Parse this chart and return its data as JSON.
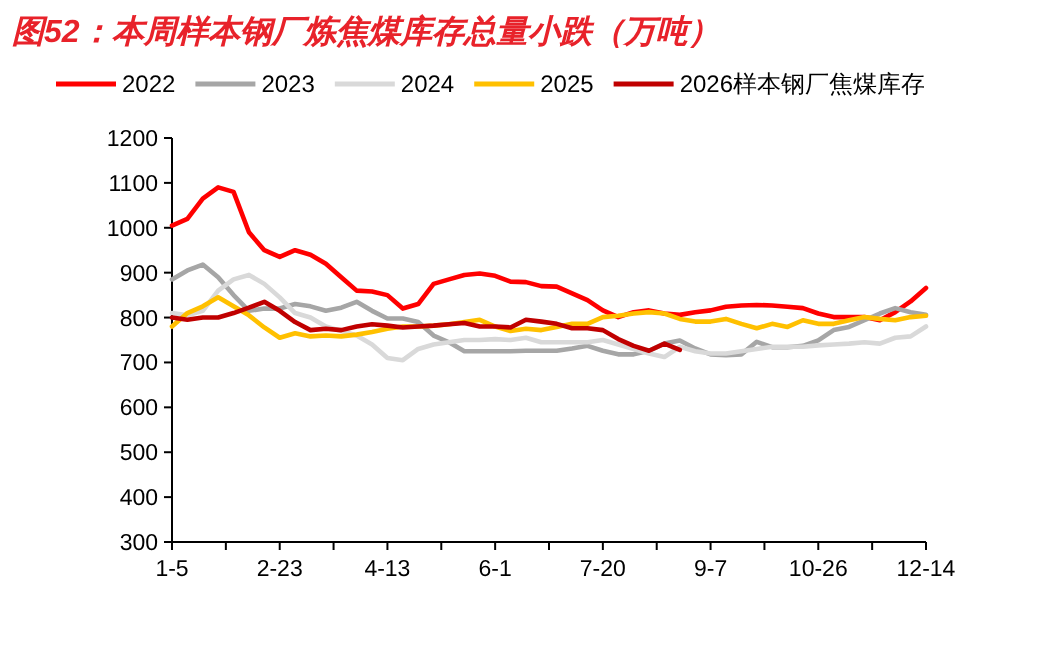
{
  "chart_data": {
    "type": "line",
    "title": "图52：本周样本钢厂炼焦煤库存总量小跌（万吨）",
    "categories": [
      "1-5",
      null,
      null,
      null,
      null,
      null,
      null,
      "2-23",
      null,
      null,
      null,
      null,
      null,
      null,
      "4-13",
      null,
      null,
      null,
      null,
      null,
      null,
      "6-1",
      null,
      null,
      null,
      null,
      null,
      null,
      "7-20",
      null,
      null,
      null,
      null,
      null,
      null,
      "9-7",
      null,
      null,
      null,
      null,
      null,
      null,
      "10-26",
      null,
      null,
      null,
      null,
      null,
      null,
      "12-14"
    ],
    "series": [
      {
        "name": "2022",
        "color": "#ff0000",
        "values": [
          1005,
          1020,
          1065,
          1090,
          1080,
          990,
          950,
          935,
          950,
          940,
          920,
          890,
          860,
          858,
          850,
          820,
          830,
          875,
          885,
          895,
          898,
          893,
          880,
          879,
          870,
          869,
          854,
          839,
          816,
          801,
          812,
          816,
          809,
          806,
          812,
          816,
          824,
          827,
          828,
          827,
          824,
          821,
          809,
          801,
          801,
          801,
          794,
          812,
          836,
          866
        ]
      },
      {
        "name": "2023",
        "color": "#a6a6a6",
        "values": [
          885,
          905,
          918,
          890,
          850,
          815,
          820,
          820,
          830,
          825,
          815,
          822,
          835,
          815,
          798,
          798,
          790,
          760,
          745,
          725,
          725,
          725,
          725,
          726,
          726,
          726,
          731,
          737,
          726,
          718,
          718,
          726,
          742,
          749,
          731,
          718,
          716,
          718,
          746,
          734,
          734,
          737,
          749,
          772,
          779,
          794,
          809,
          821,
          812,
          806
        ]
      },
      {
        "name": "2024",
        "color": "#d9d9d9",
        "values": [
          810,
          805,
          815,
          860,
          885,
          895,
          875,
          845,
          810,
          800,
          780,
          770,
          760,
          740,
          710,
          705,
          730,
          740,
          745,
          750,
          750,
          752,
          750,
          755,
          745,
          745,
          745,
          745,
          750,
          740,
          730,
          720,
          712,
          735,
          725,
          720,
          720,
          725,
          730,
          735,
          735,
          735,
          738,
          740,
          742,
          745,
          742,
          755,
          758,
          780
        ]
      },
      {
        "name": "2025",
        "color": "#ffc000",
        "values": [
          780,
          810,
          825,
          845,
          825,
          805,
          778,
          755,
          765,
          758,
          760,
          758,
          762,
          768,
          775,
          780,
          780,
          782,
          785,
          790,
          795,
          780,
          770,
          775,
          772,
          779,
          786,
          786,
          801,
          804,
          809,
          812,
          809,
          797,
          791,
          791,
          797,
          786,
          776,
          786,
          779,
          794,
          786,
          786,
          794,
          801,
          797,
          794,
          801,
          804
        ]
      },
      {
        "name": "2026样本钢厂焦煤库存",
        "color": "#c00000",
        "values": [
          800,
          795,
          800,
          800,
          810,
          822,
          835,
          815,
          790,
          772,
          775,
          772,
          780,
          785,
          782,
          778,
          780,
          782,
          785,
          788,
          780,
          780,
          778,
          795,
          791,
          786,
          776,
          776,
          772,
          752,
          737,
          726,
          742,
          728,
          null,
          null,
          null,
          null,
          null,
          null,
          null,
          null,
          null,
          null,
          null,
          null,
          null,
          null,
          null,
          null
        ]
      }
    ],
    "ylim": [
      300,
      1200
    ],
    "yticks": [
      300,
      400,
      500,
      600,
      700,
      800,
      900,
      1000,
      1100,
      1200
    ],
    "grid": false,
    "legend": "top"
  }
}
